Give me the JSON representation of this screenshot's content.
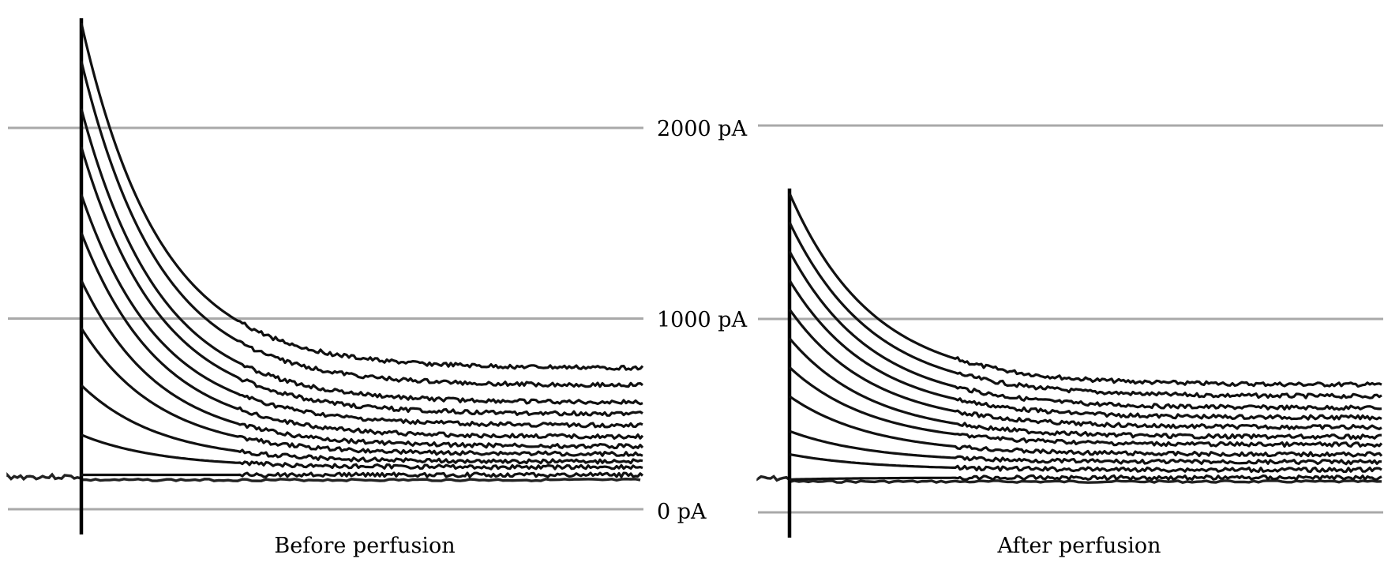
{
  "chart_data": [
    {
      "type": "line",
      "title": "Before perfusion",
      "ylabel": "",
      "xlabel": "",
      "y_unit": "pA",
      "ylim": [
        0,
        2000
      ],
      "grid_values": [
        0,
        1000,
        2000
      ],
      "tick_labels": [
        "2000 pA",
        "1000 pA",
        "0 pA"
      ],
      "series": [
        {
          "peak": 2550,
          "steady": 740
        },
        {
          "peak": 2350,
          "steady": 650
        },
        {
          "peak": 2100,
          "steady": 560
        },
        {
          "peak": 1900,
          "steady": 500
        },
        {
          "peak": 1650,
          "steady": 440
        },
        {
          "peak": 1450,
          "steady": 380
        },
        {
          "peak": 1200,
          "steady": 330
        },
        {
          "peak": 950,
          "steady": 290
        },
        {
          "peak": 650,
          "steady": 250
        },
        {
          "peak": 390,
          "steady": 220
        },
        {
          "peak": 180,
          "steady": 180
        }
      ]
    },
    {
      "type": "line",
      "title": "After perfusion",
      "ylabel": "",
      "xlabel": "",
      "y_unit": "pA",
      "ylim": [
        0,
        2000
      ],
      "grid_values": [
        0,
        1000,
        2000
      ],
      "tick_labels": [],
      "series": [
        {
          "peak": 1650,
          "steady": 660
        },
        {
          "peak": 1500,
          "steady": 600
        },
        {
          "peak": 1350,
          "steady": 540
        },
        {
          "peak": 1200,
          "steady": 490
        },
        {
          "peak": 1050,
          "steady": 440
        },
        {
          "peak": 900,
          "steady": 390
        },
        {
          "peak": 750,
          "steady": 350
        },
        {
          "peak": 600,
          "steady": 300
        },
        {
          "peak": 420,
          "steady": 260
        },
        {
          "peak": 300,
          "steady": 220
        },
        {
          "peak": 170,
          "steady": 180
        }
      ]
    }
  ]
}
